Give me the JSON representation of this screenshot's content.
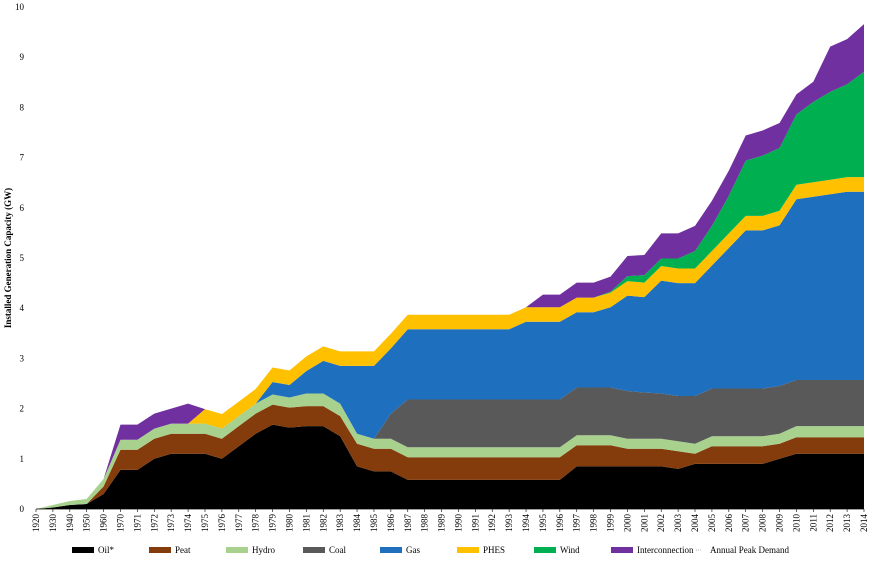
{
  "chart_data": {
    "type": "area",
    "stacked": true,
    "title": "",
    "xlabel": "",
    "ylabel": "Installed Generation Capacity (GW)",
    "ylim": [
      0,
      10
    ],
    "yticks": [
      "0",
      "1",
      "2",
      "3",
      "4",
      "5",
      "6",
      "7",
      "8",
      "9",
      "10"
    ],
    "categories": [
      "1920",
      "1930",
      "1940",
      "1950",
      "1960",
      "1970",
      "1971",
      "1972",
      "1973",
      "1974",
      "1975",
      "1976",
      "1977",
      "1978",
      "1979",
      "1980",
      "1981",
      "1982",
      "1983",
      "1984",
      "1985",
      "1986",
      "1987",
      "1988",
      "1989",
      "1990",
      "1991",
      "1992",
      "1993",
      "1994",
      "1995",
      "1996",
      "1997",
      "1998",
      "1999",
      "2000",
      "2001",
      "2002",
      "2003",
      "2004",
      "2005",
      "2006",
      "2007",
      "2008",
      "2009",
      "2010",
      "2011",
      "2012",
      "2013",
      "2014"
    ],
    "series": [
      {
        "name": "Oil*",
        "color": "#000000",
        "values": [
          0,
          0.03,
          0.08,
          0.1,
          0.3,
          0.78,
          0.78,
          1.0,
          1.1,
          1.1,
          1.1,
          1.0,
          1.25,
          1.5,
          1.68,
          1.62,
          1.65,
          1.65,
          1.45,
          0.85,
          0.75,
          0.75,
          0.58,
          0.58,
          0.58,
          0.58,
          0.58,
          0.58,
          0.58,
          0.58,
          0.58,
          0.58,
          0.85,
          0.85,
          0.85,
          0.85,
          0.85,
          0.85,
          0.8,
          0.9,
          0.9,
          0.9,
          0.9,
          0.9,
          1.0,
          1.1,
          1.1,
          1.1,
          1.1,
          1.1
        ]
      },
      {
        "name": "Peat",
        "color": "#843c0c",
        "values": [
          0,
          0,
          0,
          0,
          0.15,
          0.4,
          0.4,
          0.4,
          0.4,
          0.4,
          0.4,
          0.4,
          0.4,
          0.4,
          0.4,
          0.4,
          0.4,
          0.4,
          0.4,
          0.45,
          0.45,
          0.45,
          0.45,
          0.45,
          0.45,
          0.45,
          0.45,
          0.45,
          0.45,
          0.45,
          0.45,
          0.45,
          0.42,
          0.42,
          0.42,
          0.35,
          0.35,
          0.35,
          0.35,
          0.2,
          0.35,
          0.35,
          0.35,
          0.35,
          0.3,
          0.33,
          0.33,
          0.33,
          0.33,
          0.33
        ]
      },
      {
        "name": "Hydro",
        "color": "#a9d18e",
        "values": [
          0,
          0.05,
          0.08,
          0.1,
          0.15,
          0.2,
          0.2,
          0.2,
          0.2,
          0.2,
          0.2,
          0.2,
          0.2,
          0.2,
          0.2,
          0.2,
          0.25,
          0.25,
          0.25,
          0.2,
          0.2,
          0.2,
          0.2,
          0.2,
          0.2,
          0.2,
          0.2,
          0.2,
          0.2,
          0.2,
          0.2,
          0.2,
          0.2,
          0.2,
          0.2,
          0.2,
          0.2,
          0.2,
          0.2,
          0.2,
          0.2,
          0.2,
          0.2,
          0.2,
          0.2,
          0.22,
          0.22,
          0.22,
          0.22,
          0.22
        ]
      },
      {
        "name": "Coal",
        "color": "#595959",
        "values": [
          0,
          0,
          0,
          0,
          0,
          0,
          0,
          0,
          0,
          0,
          0,
          0,
          0,
          0,
          0,
          0,
          0,
          0,
          0,
          0,
          0,
          0.5,
          0.95,
          0.95,
          0.95,
          0.95,
          0.95,
          0.95,
          0.95,
          0.95,
          0.95,
          0.95,
          0.95,
          0.95,
          0.95,
          0.95,
          0.92,
          0.9,
          0.9,
          0.95,
          0.95,
          0.95,
          0.95,
          0.95,
          0.95,
          0.92,
          0.92,
          0.92,
          0.92,
          0.92
        ]
      },
      {
        "name": "Gas",
        "color": "#1f6fbf",
        "values": [
          0,
          0,
          0,
          0,
          0,
          0,
          0,
          0,
          0,
          0,
          0,
          0,
          0,
          0,
          0.25,
          0.25,
          0.45,
          0.65,
          0.75,
          1.35,
          1.45,
          1.3,
          1.4,
          1.4,
          1.4,
          1.4,
          1.4,
          1.4,
          1.4,
          1.55,
          1.55,
          1.55,
          1.5,
          1.5,
          1.6,
          1.9,
          1.9,
          2.25,
          2.25,
          2.25,
          2.45,
          2.8,
          3.15,
          3.15,
          3.2,
          3.6,
          3.65,
          3.7,
          3.75,
          3.75
        ]
      },
      {
        "name": "PHES",
        "color": "#ffc000",
        "values": [
          0,
          0,
          0,
          0,
          0,
          0,
          0,
          0,
          0,
          0,
          0.29,
          0.29,
          0.29,
          0.29,
          0.29,
          0.29,
          0.29,
          0.29,
          0.29,
          0.29,
          0.29,
          0.29,
          0.29,
          0.29,
          0.29,
          0.29,
          0.29,
          0.29,
          0.29,
          0.29,
          0.29,
          0.29,
          0.29,
          0.29,
          0.29,
          0.29,
          0.29,
          0.29,
          0.29,
          0.29,
          0.29,
          0.29,
          0.29,
          0.29,
          0.29,
          0.29,
          0.29,
          0.29,
          0.29,
          0.29
        ]
      },
      {
        "name": "Wind",
        "color": "#00b050",
        "values": [
          0,
          0,
          0,
          0,
          0,
          0,
          0,
          0,
          0,
          0,
          0,
          0,
          0,
          0,
          0,
          0,
          0,
          0,
          0,
          0,
          0,
          0,
          0,
          0,
          0,
          0,
          0,
          0,
          0,
          0,
          0,
          0,
          0,
          0,
          0.02,
          0.1,
          0.15,
          0.15,
          0.2,
          0.35,
          0.5,
          0.75,
          1.1,
          1.2,
          1.25,
          1.4,
          1.6,
          1.75,
          1.85,
          2.1
        ]
      },
      {
        "name": "Interconnection",
        "color": "#7030a0",
        "values": [
          0,
          0,
          0,
          0,
          0,
          0.3,
          0.3,
          0.3,
          0.3,
          0.4,
          0,
          0,
          0,
          0,
          0,
          0,
          0,
          0,
          0,
          0,
          0,
          0,
          0,
          0,
          0,
          0,
          0,
          0,
          0,
          0,
          0.25,
          0.25,
          0.3,
          0.3,
          0.3,
          0.4,
          0.4,
          0.5,
          0.5,
          0.5,
          0.5,
          0.5,
          0.5,
          0.5,
          0.5,
          0.4,
          0.4,
          0.9,
          0.9,
          0.95
        ]
      }
    ],
    "extra_legend": [
      "Annual Peak Demand"
    ],
    "legend": "bottom",
    "grid": false
  }
}
